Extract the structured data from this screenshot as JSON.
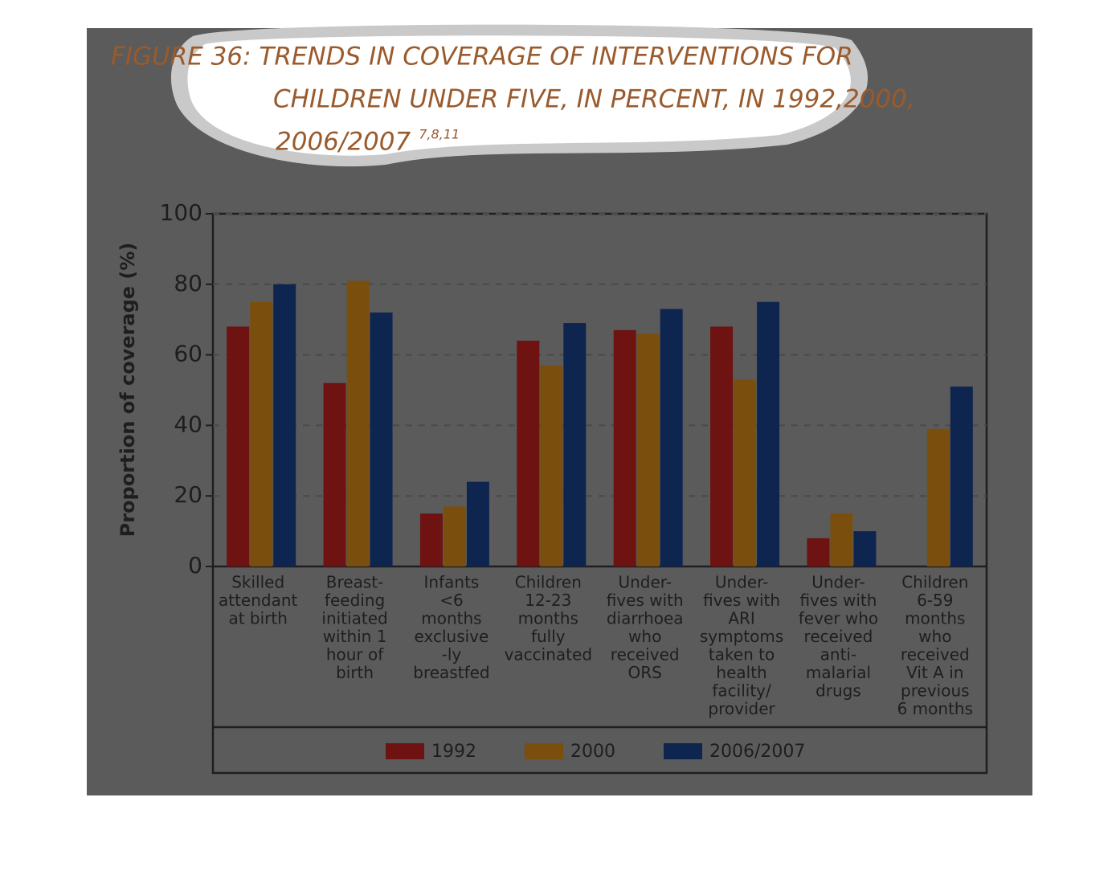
{
  "chart_data": {
    "type": "bar",
    "title": [
      "FIGURE 36: TRENDS IN COVERAGE OF INTERVENTIONS FOR",
      "CHILDREN UNDER FIVE, IN PERCENT, IN 1992,2000,",
      "2006/2007"
    ],
    "title_superscript": "7,8,11",
    "y_label": "Proportion of coverage (%)",
    "categories": [
      [
        "Skilled",
        "attendant",
        "at birth"
      ],
      [
        "Breast-",
        "feeding",
        "initiated",
        "within 1",
        "hour of",
        "birth"
      ],
      [
        "Infants",
        "<6",
        "months",
        "exclusive",
        "-ly",
        "breastfed"
      ],
      [
        "Children",
        "12-23",
        "months",
        "fully",
        "vaccinated"
      ],
      [
        "Under-",
        "fives with",
        "diarrhoea",
        "who",
        "received",
        "ORS"
      ],
      [
        "Under-",
        "fives with",
        "ARI",
        "symptoms",
        "taken to",
        "health",
        "facility/",
        "provider"
      ],
      [
        "Under-",
        "fives with",
        "fever who",
        "received",
        "anti-",
        "malarial",
        "drugs"
      ],
      [
        "Children",
        "6-59",
        "months",
        "who",
        "received",
        "Vit A in",
        "previous",
        "6 months"
      ]
    ],
    "series": [
      {
        "name": "1992",
        "color": "#6e1212",
        "values": [
          68,
          52,
          15,
          64,
          67,
          68,
          8,
          null
        ]
      },
      {
        "name": "2000",
        "color": "#7a4f0e",
        "values": [
          75,
          81,
          17,
          57,
          66,
          53,
          15,
          39
        ]
      },
      {
        "name": "2006/2007",
        "color": "#0e2550",
        "values": [
          80,
          72,
          24,
          69,
          73,
          75,
          10,
          51
        ]
      }
    ],
    "ylim": [
      0,
      100
    ],
    "yticks": [
      0,
      20,
      40,
      60,
      80,
      100
    ],
    "grid": true,
    "legend": "bottom"
  }
}
